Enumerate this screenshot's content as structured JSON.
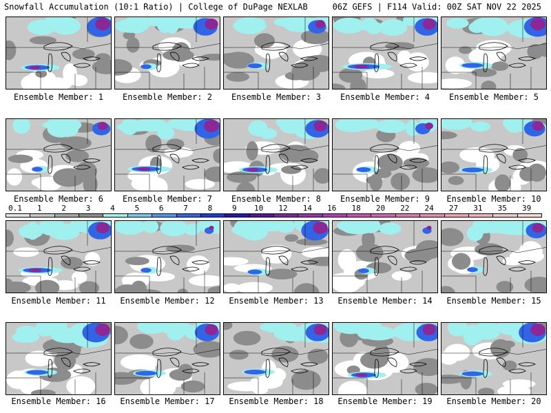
{
  "header": {
    "title_left": "Snowfall Accumulation (10:1 Ratio) | College of DuPage NEXLAB",
    "title_right": "06Z GEFS | F114 Valid: 00Z SAT NOV 22 2025"
  },
  "panels": [
    {
      "label": "Ensemble Member: 1",
      "intensity": 0.55,
      "band": 0.7,
      "ne": 0.9
    },
    {
      "label": "Ensemble Member: 2",
      "intensity": 0.45,
      "band": 0.3,
      "ne": 0.8
    },
    {
      "label": "Ensemble Member: 3",
      "intensity": 0.5,
      "band": 0.4,
      "ne": 0.6
    },
    {
      "label": "Ensemble Member: 4",
      "intensity": 0.6,
      "band": 0.9,
      "ne": 0.8
    },
    {
      "label": "Ensemble Member: 5",
      "intensity": 0.6,
      "band": 0.6,
      "ne": 0.9
    },
    {
      "label": "Ensemble Member: 6",
      "intensity": 0.45,
      "band": 0.3,
      "ne": 0.6
    },
    {
      "label": "Ensemble Member: 7",
      "intensity": 0.7,
      "band": 0.8,
      "ne": 0.9
    },
    {
      "label": "Ensemble Member: 8",
      "intensity": 0.75,
      "band": 0.7,
      "ne": 0.8
    },
    {
      "label": "Ensemble Member: 9",
      "intensity": 0.4,
      "band": 0.4,
      "ne": 0.5
    },
    {
      "label": "Ensemble Member: 10",
      "intensity": 0.45,
      "band": 0.6,
      "ne": 0.7
    },
    {
      "label": "Ensemble Member: 11",
      "intensity": 0.6,
      "band": 0.8,
      "ne": 0.8
    },
    {
      "label": "Ensemble Member: 12",
      "intensity": 0.35,
      "band": 0.3,
      "ne": 0.3
    },
    {
      "label": "Ensemble Member: 13",
      "intensity": 0.6,
      "band": 0.4,
      "ne": 0.9
    },
    {
      "label": "Ensemble Member: 14",
      "intensity": 0.35,
      "band": 0.3,
      "ne": 0.3
    },
    {
      "label": "Ensemble Member: 15",
      "intensity": 0.6,
      "band": 0.3,
      "ne": 0.7
    },
    {
      "label": "Ensemble Member: 16",
      "intensity": 0.85,
      "band": 0.6,
      "ne": 0.9
    },
    {
      "label": "Ensemble Member: 17",
      "intensity": 0.6,
      "band": 0.6,
      "ne": 0.8
    },
    {
      "label": "Ensemble Member: 18",
      "intensity": 0.65,
      "band": 0.6,
      "ne": 0.8
    },
    {
      "label": "Ensemble Member: 19",
      "intensity": 0.6,
      "band": 0.7,
      "ne": 0.8
    },
    {
      "label": "Ensemble Member: 20",
      "intensity": 0.7,
      "band": 0.6,
      "ne": 0.9
    }
  ],
  "colorbar": {
    "labels": [
      "0.1",
      "1",
      "2",
      "3",
      "4",
      "5",
      "6",
      "7",
      "8",
      "9",
      "10",
      "12",
      "14",
      "16",
      "18",
      "20",
      "22",
      "24",
      "27",
      "31",
      "35",
      "39"
    ],
    "colors": [
      "#e6e6e6",
      "#c8c8c8",
      "#a8a8a8",
      "#8c8c8c",
      "#a0f0f0",
      "#78c8f0",
      "#5096f0",
      "#3264e6",
      "#1e3cdc",
      "#2814b4",
      "#5a1496",
      "#7828a0",
      "#9632aa",
      "#b43cb4",
      "#c850b4",
      "#d264b4",
      "#dc78b4",
      "#e68cb4",
      "#f0a0b4",
      "#f0b4be",
      "#f0c8c8",
      "#f5dcd2"
    ]
  },
  "colors": {
    "snow_light": "#c8c8c8",
    "snow_mid": "#8c8c8c",
    "snow_cyan": "#a0f0f0",
    "snow_blue": "#3264e6",
    "snow_purple": "#8c2896",
    "land": "#ffffff",
    "border": "#000000"
  }
}
